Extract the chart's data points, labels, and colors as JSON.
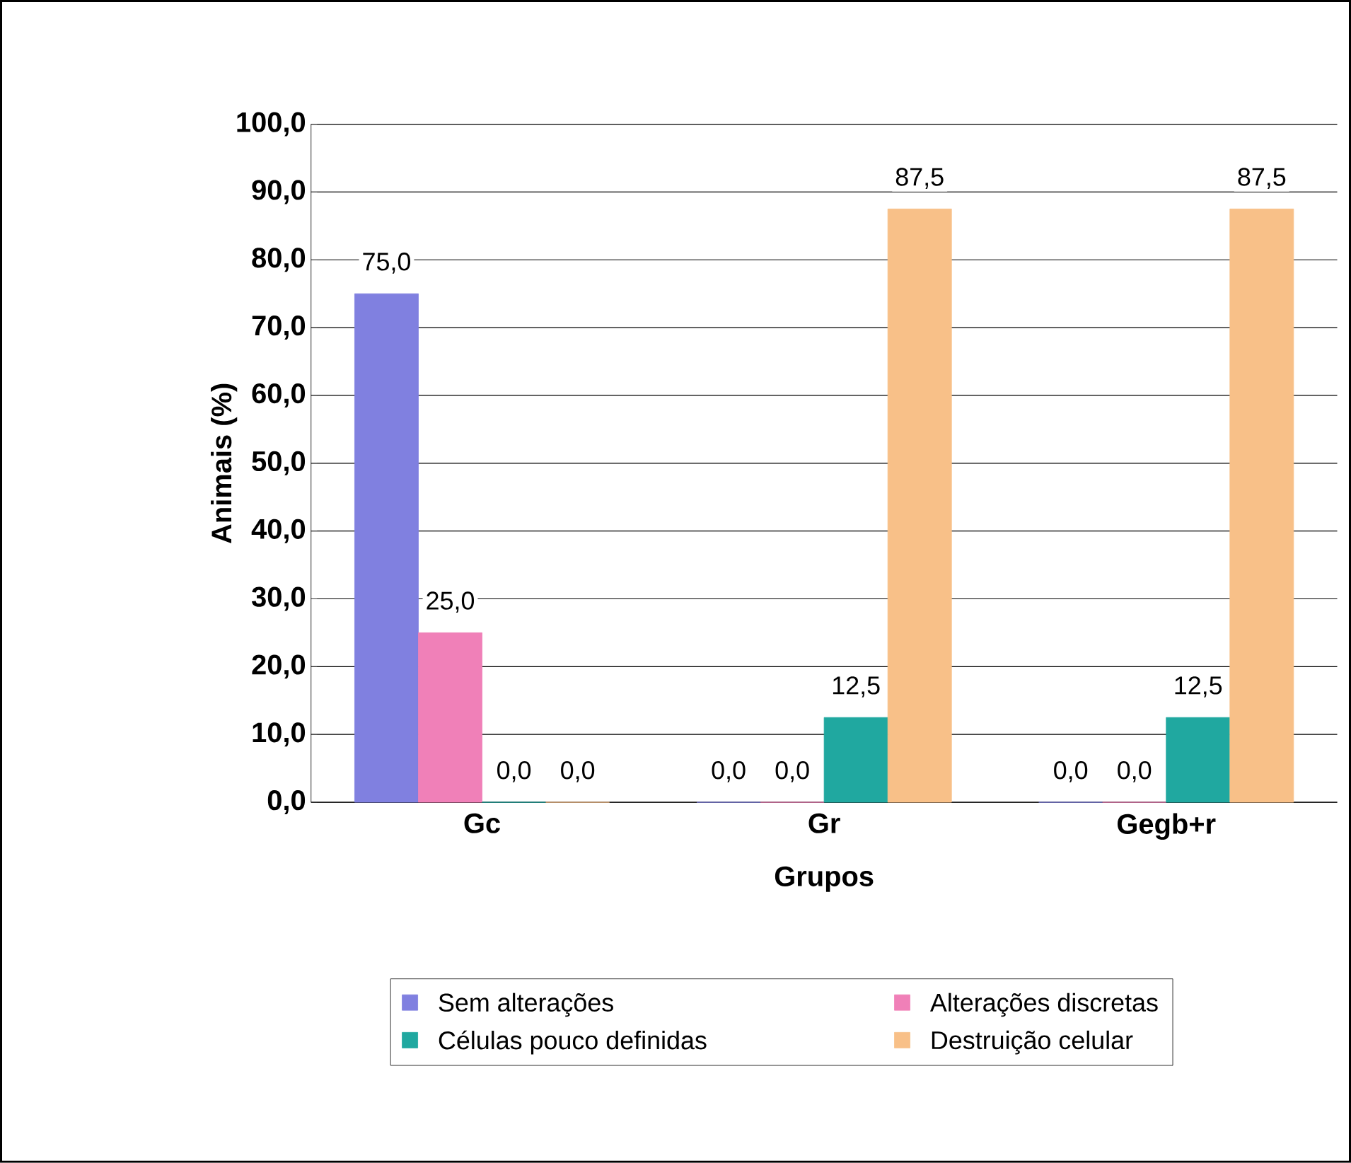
{
  "chart_data": {
    "type": "bar",
    "xlabel": "Grupos",
    "ylabel": "Animais (%)",
    "categories": [
      "Gc",
      "Gr",
      "Gegb+r"
    ],
    "series": [
      {
        "name": "Sem alterações",
        "color": "#8080e0",
        "values": [
          75.0,
          0.0,
          0.0
        ],
        "value_labels": [
          "75,0",
          "0,0",
          "0,0"
        ]
      },
      {
        "name": "Alterações discretas",
        "color": "#f080b8",
        "values": [
          25.0,
          0.0,
          0.0
        ],
        "value_labels": [
          "25,0",
          "0,0",
          "0,0"
        ]
      },
      {
        "name": "Células pouco definidas",
        "color": "#20a8a0",
        "values": [
          0.0,
          12.5,
          12.5
        ],
        "value_labels": [
          "0,0",
          "12,5",
          "12,5"
        ]
      },
      {
        "name": "Destruição celular",
        "color": "#f8c088",
        "values": [
          0.0,
          87.5,
          87.5
        ],
        "value_labels": [
          "0,0",
          "87,5",
          "87,5"
        ]
      }
    ],
    "ylim": [
      0,
      100
    ],
    "yticks": [
      {
        "value": 0,
        "label": "0,0"
      },
      {
        "value": 10,
        "label": "10,0"
      },
      {
        "value": 20,
        "label": "20,0"
      },
      {
        "value": 30,
        "label": "30,0"
      },
      {
        "value": 40,
        "label": "40,0"
      },
      {
        "value": 50,
        "label": "50,0"
      },
      {
        "value": 60,
        "label": "60,0"
      },
      {
        "value": 70,
        "label": "70,0"
      },
      {
        "value": 80,
        "label": "80,0"
      },
      {
        "value": 90,
        "label": "90,0"
      },
      {
        "value": 100,
        "label": "100,0"
      }
    ],
    "grid": "y",
    "legend": "bottom"
  }
}
